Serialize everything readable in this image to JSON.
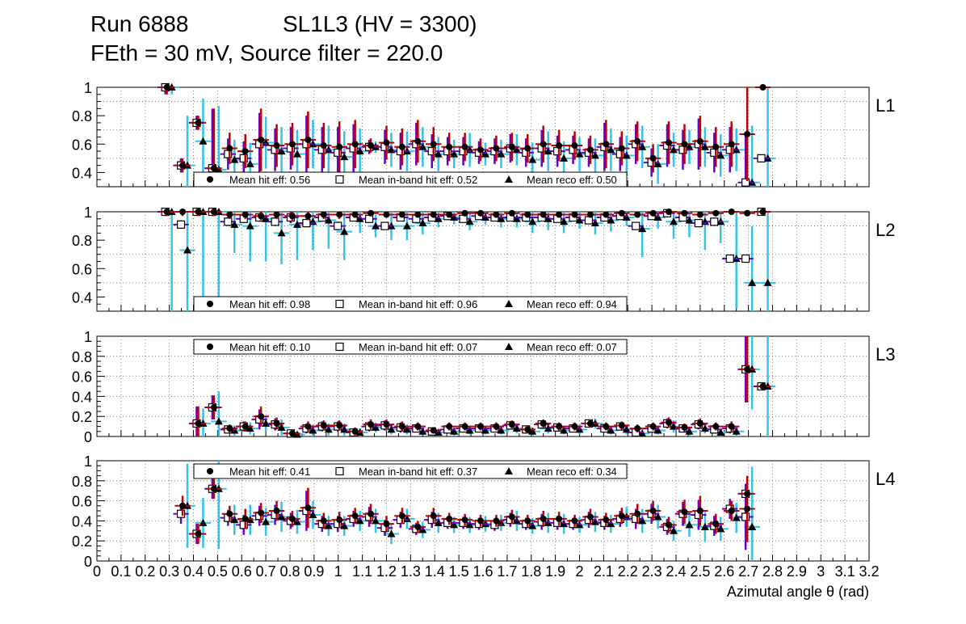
{
  "header": {
    "run": "Run 6888",
    "chamber": "SL1L3 (HV = 3300)",
    "settings": "FEth = 30 mV, Source filter = 220.0"
  },
  "colors": {
    "hit": "#c00000",
    "inband": "#6a00c8",
    "reco": "#33c2ec",
    "frame": "#000000",
    "grid": "#666666"
  },
  "chart_data": {
    "type": "scatter",
    "xlabel": "Azimutal angle θ (rad)",
    "xlim": [
      0,
      3.2
    ],
    "x_tick_labels": [
      "0",
      "0.1",
      "0.2",
      "0.3",
      "0.4",
      "0.5",
      "0.6",
      "0.7",
      "0.8",
      "0.9",
      "1",
      "1.1",
      "1.2",
      "1.3",
      "1.4",
      "1.5",
      "1.6",
      "1.7",
      "1.8",
      "1.9",
      "2",
      "2.1",
      "2.2",
      "2.3",
      "2.4",
      "2.5",
      "2.6",
      "2.7",
      "2.8",
      "2.9",
      "3",
      "3.1",
      "3.2"
    ],
    "bin_width": 0.065,
    "x": [
      0.29,
      0.355,
      0.42,
      0.485,
      0.55,
      0.615,
      0.68,
      0.745,
      0.81,
      0.875,
      0.94,
      1.005,
      1.07,
      1.135,
      1.2,
      1.265,
      1.33,
      1.395,
      1.46,
      1.525,
      1.59,
      1.655,
      1.72,
      1.785,
      1.85,
      1.915,
      1.98,
      2.045,
      2.11,
      2.175,
      2.24,
      2.305,
      2.37,
      2.435,
      2.5,
      2.565,
      2.63,
      2.695
    ],
    "legend": {
      "hit": "Mean hit  eff: ",
      "inband": "Mean in-band hit eff: ",
      "reco": "Mean reco eff: "
    },
    "panels": [
      {
        "name": "L1",
        "ylim": [
          0.3,
          1.0
        ],
        "y_ticks": [
          0.4,
          0.6,
          0.8,
          1
        ],
        "y_tick_labels": [
          "0.4",
          "0.6",
          "0.8",
          "1"
        ],
        "legend_pos": "bottom",
        "mean_hit": "0.56",
        "mean_inband": "0.52",
        "mean_reco": "0.50",
        "hit": [
          1.0,
          0.45,
          0.75,
          0.43,
          0.57,
          0.55,
          0.63,
          0.59,
          0.6,
          0.63,
          0.59,
          0.58,
          0.6,
          0.59,
          0.61,
          0.58,
          0.62,
          0.6,
          0.58,
          0.58,
          0.56,
          0.57,
          0.58,
          0.57,
          0.6,
          0.59,
          0.59,
          0.56,
          0.6,
          0.57,
          0.62,
          0.5,
          0.61,
          0.6,
          0.62,
          0.58,
          0.6,
          0.67
        ],
        "inband": [
          1.0,
          0.45,
          0.75,
          0.43,
          0.53,
          0.5,
          0.6,
          0.56,
          0.57,
          0.6,
          0.56,
          0.54,
          0.57,
          0.58,
          0.58,
          0.55,
          0.6,
          0.55,
          0.55,
          0.55,
          0.54,
          0.55,
          0.57,
          0.54,
          0.57,
          0.55,
          0.56,
          0.54,
          0.58,
          0.53,
          0.6,
          0.47,
          0.59,
          0.56,
          0.6,
          0.54,
          0.56,
          0.33
        ],
        "reco": [
          1.0,
          0.45,
          0.62,
          0.42,
          0.49,
          0.46,
          0.61,
          0.55,
          0.53,
          0.6,
          0.56,
          0.51,
          0.55,
          0.58,
          0.56,
          0.55,
          0.58,
          0.53,
          0.53,
          0.56,
          0.53,
          0.53,
          0.56,
          0.49,
          0.55,
          0.5,
          0.53,
          0.52,
          0.56,
          0.52,
          0.58,
          0.46,
          0.56,
          0.58,
          0.58,
          0.52,
          0.56,
          0.33
        ],
        "extra": {
          "x": 2.76,
          "hit": 1.0,
          "inband": 0.5,
          "reco": 0.5
        },
        "hit_err": [
          0.05,
          0.05,
          0.05,
          0.42,
          0.11,
          0.12,
          0.22,
          0.15,
          0.15,
          0.2,
          0.16,
          0.18,
          0.17,
          0.05,
          0.12,
          0.13,
          0.15,
          0.12,
          0.1,
          0.1,
          0.08,
          0.09,
          0.1,
          0.1,
          0.13,
          0.11,
          0.1,
          0.1,
          0.17,
          0.12,
          0.14,
          0.1,
          0.15,
          0.14,
          0.18,
          0.14,
          0.16,
          0.33
        ],
        "reco_err": [
          0.05,
          0.35,
          0.3,
          0.45,
          0.14,
          0.15,
          0.18,
          0.17,
          0.17,
          0.17,
          0.17,
          0.18,
          0.16,
          0.04,
          0.12,
          0.14,
          0.14,
          0.12,
          0.1,
          0.12,
          0.08,
          0.1,
          0.11,
          0.12,
          0.14,
          0.12,
          0.12,
          0.12,
          0.15,
          0.14,
          0.15,
          0.14,
          0.12,
          0.12,
          0.14,
          0.15,
          0.15,
          0.4
        ]
      },
      {
        "name": "L2",
        "ylim": [
          0.3,
          1.0
        ],
        "y_ticks": [
          0.4,
          0.6,
          0.8,
          1
        ],
        "y_tick_labels": [
          "0.4",
          "0.6",
          "0.8",
          "1"
        ],
        "legend_pos": "bottom",
        "mean_hit": "0.98",
        "mean_inband": "0.96",
        "mean_reco": "0.94",
        "hit": [
          1.0,
          1.0,
          1.0,
          1.0,
          0.98,
          0.98,
          0.97,
          0.98,
          0.97,
          0.97,
          0.98,
          0.98,
          0.98,
          0.99,
          0.98,
          0.98,
          0.98,
          0.98,
          0.98,
          0.99,
          0.99,
          0.98,
          0.99,
          0.98,
          0.98,
          0.98,
          0.98,
          0.98,
          0.98,
          0.99,
          0.98,
          0.99,
          1.0,
          0.99,
          0.98,
          0.99,
          1.0,
          0.99
        ],
        "inband": [
          1.0,
          0.91,
          1.0,
          1.0,
          0.93,
          0.95,
          0.96,
          0.93,
          0.96,
          0.92,
          0.96,
          0.9,
          0.96,
          0.95,
          0.9,
          0.96,
          0.95,
          0.96,
          0.97,
          0.95,
          0.97,
          0.96,
          0.96,
          0.96,
          0.96,
          0.95,
          0.96,
          0.94,
          0.96,
          0.97,
          0.9,
          0.97,
          0.99,
          0.96,
          0.92,
          0.93,
          0.67,
          0.67
        ],
        "reco": [
          1.0,
          0.73,
          1.0,
          1.0,
          0.91,
          0.9,
          0.95,
          0.85,
          0.91,
          0.93,
          0.94,
          0.86,
          0.95,
          0.9,
          0.9,
          0.9,
          0.92,
          0.95,
          0.96,
          0.93,
          0.96,
          0.95,
          0.95,
          0.93,
          0.95,
          0.93,
          0.94,
          0.92,
          0.94,
          0.96,
          0.88,
          0.96,
          0.93,
          0.94,
          0.93,
          0.93,
          0.67,
          0.5
        ],
        "extra": {
          "x": 2.76,
          "hit": 1.0,
          "inband": 1.0,
          "reco": 0.5
        },
        "hit_err": [
          0.03,
          0.03,
          0.03,
          0.03,
          0.03,
          0.03,
          0.03,
          0.03,
          0.04,
          0.03,
          0.03,
          0.03,
          0.02,
          0.02,
          0.02,
          0.02,
          0.02,
          0.02,
          0.02,
          0.02,
          0.02,
          0.02,
          0.02,
          0.02,
          0.02,
          0.02,
          0.02,
          0.02,
          0.02,
          0.02,
          0.02,
          0.02,
          0.02,
          0.02,
          0.02,
          0.02,
          0.02,
          0.02
        ],
        "reco_err": [
          0.7,
          0.6,
          0.6,
          0.6,
          0.2,
          0.25,
          0.3,
          0.22,
          0.25,
          0.2,
          0.2,
          0.2,
          0.1,
          0.08,
          0.1,
          0.1,
          0.08,
          0.06,
          0.05,
          0.06,
          0.05,
          0.06,
          0.06,
          0.08,
          0.08,
          0.08,
          0.06,
          0.08,
          0.08,
          0.06,
          0.2,
          0.08,
          0.12,
          0.12,
          0.2,
          0.15,
          0.35,
          0.4
        ]
      },
      {
        "name": "L3",
        "ylim": [
          0,
          1.0
        ],
        "y_ticks": [
          0,
          0.2,
          0.4,
          0.6,
          0.8,
          1
        ],
        "y_tick_labels": [
          "0",
          "0.2",
          "0.4",
          "0.6",
          "0.8",
          "1"
        ],
        "legend_pos": "top",
        "mean_hit": "0.10",
        "mean_inband": "0.07",
        "mean_reco": "0.07",
        "hit": [
          null,
          null,
          0.13,
          0.29,
          0.08,
          0.1,
          0.2,
          0.13,
          0.03,
          0.1,
          0.11,
          0.11,
          0.05,
          0.12,
          0.12,
          0.1,
          0.1,
          0.06,
          0.1,
          0.1,
          0.1,
          0.1,
          0.12,
          0.07,
          0.13,
          0.1,
          0.1,
          0.13,
          0.1,
          0.11,
          0.08,
          0.1,
          0.14,
          0.09,
          0.13,
          0.1,
          0.1,
          0.67
        ],
        "inband": [
          null,
          null,
          0.13,
          0.29,
          0.07,
          0.1,
          0.17,
          0.12,
          0.03,
          0.08,
          0.1,
          0.1,
          0.04,
          0.1,
          0.11,
          0.09,
          0.08,
          0.05,
          0.07,
          0.08,
          0.08,
          0.08,
          0.11,
          0.07,
          0.12,
          0.09,
          0.08,
          0.13,
          0.08,
          0.1,
          0.04,
          0.08,
          0.13,
          0.08,
          0.12,
          0.07,
          0.08,
          0.67
        ],
        "reco": [
          null,
          null,
          0.13,
          0.15,
          0.06,
          0.08,
          0.13,
          0.09,
          0.02,
          0.06,
          0.07,
          0.07,
          0.04,
          0.09,
          0.07,
          0.07,
          0.05,
          0.04,
          0.05,
          0.06,
          0.06,
          0.06,
          0.08,
          0.05,
          0.08,
          0.06,
          0.07,
          0.13,
          0.06,
          0.07,
          0.03,
          0.06,
          0.1,
          0.05,
          0.08,
          0.04,
          0.05,
          0.67
        ],
        "extra": {
          "x": 2.76,
          "hit": 0.5,
          "inband": 0.5,
          "reco": 0.5
        },
        "hit_err": [
          0,
          0,
          0.17,
          0.12,
          0.04,
          0.05,
          0.1,
          0.06,
          0.03,
          0.05,
          0.05,
          0.05,
          0.04,
          0.05,
          0.05,
          0.05,
          0.04,
          0.03,
          0.04,
          0.04,
          0.04,
          0.04,
          0.04,
          0.04,
          0.04,
          0.04,
          0.04,
          0.04,
          0.04,
          0.04,
          0.04,
          0.04,
          0.05,
          0.04,
          0.05,
          0.04,
          0.05,
          0.33
        ],
        "reco_err": [
          0,
          0,
          0.15,
          0.3,
          0.05,
          0.06,
          0.08,
          0.08,
          0.03,
          0.06,
          0.06,
          0.06,
          0.04,
          0.05,
          0.05,
          0.05,
          0.04,
          0.03,
          0.04,
          0.04,
          0.04,
          0.04,
          0.05,
          0.04,
          0.05,
          0.04,
          0.05,
          0.05,
          0.04,
          0.05,
          0.04,
          0.04,
          0.06,
          0.04,
          0.05,
          0.04,
          0.05,
          0.4
        ]
      },
      {
        "name": "L4",
        "ylim": [
          0,
          1.0
        ],
        "y_ticks": [
          0,
          0.2,
          0.4,
          0.6,
          0.8,
          1
        ],
        "y_tick_labels": [
          "0",
          "0.2",
          "0.4",
          "0.6",
          "0.8",
          "1"
        ],
        "legend_pos": "top",
        "mean_hit": "0.41",
        "mean_inband": "0.37",
        "mean_reco": "0.34",
        "hit": [
          null,
          0.55,
          0.27,
          0.72,
          0.47,
          0.42,
          0.48,
          0.5,
          0.42,
          0.53,
          0.4,
          0.41,
          0.45,
          0.47,
          0.37,
          0.45,
          0.34,
          0.45,
          0.42,
          0.41,
          0.4,
          0.4,
          0.44,
          0.4,
          0.42,
          0.42,
          0.4,
          0.44,
          0.41,
          0.45,
          0.47,
          0.5,
          0.36,
          0.49,
          0.5,
          0.37,
          0.5,
          0.52
        ],
        "inband": [
          null,
          0.47,
          0.27,
          0.72,
          0.43,
          0.36,
          0.45,
          0.46,
          0.4,
          0.5,
          0.37,
          0.37,
          0.42,
          0.44,
          0.33,
          0.41,
          0.32,
          0.41,
          0.38,
          0.38,
          0.37,
          0.36,
          0.41,
          0.37,
          0.39,
          0.38,
          0.37,
          0.41,
          0.38,
          0.42,
          0.42,
          0.47,
          0.34,
          0.47,
          0.46,
          0.35,
          0.52,
          0.44
        ],
        "reco": [
          null,
          0.55,
          0.38,
          0.72,
          0.41,
          0.41,
          0.39,
          0.44,
          0.39,
          0.46,
          0.35,
          0.35,
          0.4,
          0.4,
          0.27,
          0.42,
          0.31,
          0.38,
          0.36,
          0.36,
          0.37,
          0.38,
          0.4,
          0.35,
          0.38,
          0.37,
          0.36,
          0.39,
          0.37,
          0.44,
          0.4,
          0.44,
          0.3,
          0.36,
          0.34,
          0.32,
          0.43,
          0.34
        ],
        "extra": {
          "x": 2.695,
          "hit": 0.67,
          "inband": 0.67,
          "reco": 0.34
        },
        "hit_err": [
          0,
          0.1,
          0.1,
          0.1,
          0.08,
          0.1,
          0.1,
          0.1,
          0.08,
          0.2,
          0.08,
          0.08,
          0.08,
          0.1,
          0.08,
          0.08,
          0.06,
          0.08,
          0.06,
          0.06,
          0.06,
          0.06,
          0.07,
          0.06,
          0.08,
          0.07,
          0.06,
          0.08,
          0.07,
          0.08,
          0.1,
          0.1,
          0.08,
          0.12,
          0.15,
          0.1,
          0.1,
          0.33
        ],
        "reco_err": [
          0,
          0.42,
          0.25,
          0.6,
          0.15,
          0.15,
          0.14,
          0.15,
          0.12,
          0.14,
          0.1,
          0.1,
          0.1,
          0.12,
          0.1,
          0.1,
          0.08,
          0.1,
          0.08,
          0.08,
          0.08,
          0.08,
          0.1,
          0.08,
          0.1,
          0.1,
          0.08,
          0.1,
          0.09,
          0.1,
          0.12,
          0.12,
          0.1,
          0.12,
          0.15,
          0.12,
          0.15,
          0.33
        ]
      }
    ]
  }
}
